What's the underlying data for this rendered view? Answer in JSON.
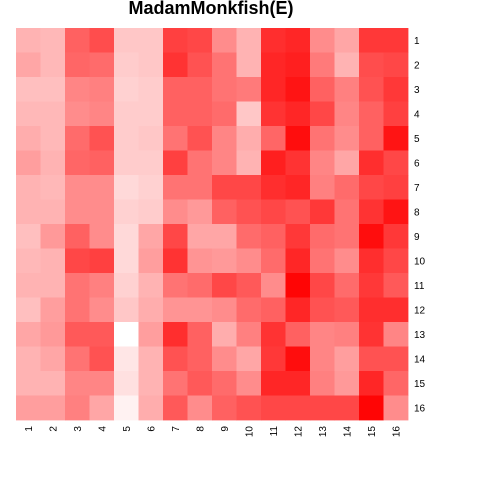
{
  "chart_data": {
    "type": "heatmap",
    "title": "MadamMonkfish(E)",
    "x_labels": [
      "1",
      "2",
      "3",
      "4",
      "5",
      "6",
      "7",
      "8",
      "9",
      "10",
      "11",
      "12",
      "13",
      "14",
      "15",
      "16"
    ],
    "y_labels": [
      "1",
      "2",
      "3",
      "4",
      "5",
      "6",
      "7",
      "8",
      "9",
      "10",
      "11",
      "12",
      "13",
      "14",
      "15",
      "16"
    ],
    "color_scale": {
      "low": "#ffffff",
      "high": "#ff0000"
    },
    "value_range": [
      0,
      1
    ],
    "values": [
      [
        0.3,
        0.28,
        0.62,
        0.7,
        0.22,
        0.22,
        0.75,
        0.72,
        0.45,
        0.3,
        0.82,
        0.85,
        0.45,
        0.35,
        0.78,
        0.78
      ],
      [
        0.35,
        0.28,
        0.6,
        0.58,
        0.2,
        0.22,
        0.8,
        0.68,
        0.55,
        0.3,
        0.85,
        0.88,
        0.52,
        0.3,
        0.7,
        0.72
      ],
      [
        0.25,
        0.25,
        0.48,
        0.5,
        0.18,
        0.2,
        0.62,
        0.62,
        0.55,
        0.52,
        0.85,
        0.92,
        0.62,
        0.5,
        0.68,
        0.78
      ],
      [
        0.28,
        0.28,
        0.45,
        0.48,
        0.2,
        0.2,
        0.62,
        0.62,
        0.58,
        0.22,
        0.8,
        0.85,
        0.72,
        0.48,
        0.62,
        0.75
      ],
      [
        0.32,
        0.28,
        0.58,
        0.68,
        0.2,
        0.22,
        0.55,
        0.68,
        0.48,
        0.32,
        0.6,
        0.95,
        0.55,
        0.45,
        0.62,
        0.92
      ],
      [
        0.38,
        0.3,
        0.6,
        0.62,
        0.2,
        0.2,
        0.75,
        0.55,
        0.48,
        0.3,
        0.88,
        0.8,
        0.48,
        0.35,
        0.82,
        0.72
      ],
      [
        0.3,
        0.28,
        0.45,
        0.45,
        0.15,
        0.18,
        0.55,
        0.55,
        0.72,
        0.72,
        0.82,
        0.85,
        0.5,
        0.58,
        0.72,
        0.75
      ],
      [
        0.3,
        0.3,
        0.45,
        0.45,
        0.18,
        0.2,
        0.45,
        0.4,
        0.62,
        0.68,
        0.72,
        0.68,
        0.78,
        0.55,
        0.8,
        0.92
      ],
      [
        0.25,
        0.4,
        0.62,
        0.45,
        0.15,
        0.35,
        0.72,
        0.35,
        0.35,
        0.58,
        0.62,
        0.78,
        0.58,
        0.55,
        0.95,
        0.78
      ],
      [
        0.28,
        0.3,
        0.72,
        0.75,
        0.15,
        0.38,
        0.8,
        0.42,
        0.4,
        0.45,
        0.58,
        0.85,
        0.55,
        0.45,
        0.82,
        0.72
      ],
      [
        0.3,
        0.3,
        0.55,
        0.5,
        0.18,
        0.3,
        0.55,
        0.58,
        0.72,
        0.65,
        0.45,
        0.98,
        0.72,
        0.58,
        0.78,
        0.65
      ],
      [
        0.25,
        0.38,
        0.55,
        0.45,
        0.22,
        0.32,
        0.42,
        0.42,
        0.45,
        0.58,
        0.62,
        0.85,
        0.68,
        0.65,
        0.82,
        0.82
      ],
      [
        0.35,
        0.4,
        0.65,
        0.65,
        0.0,
        0.38,
        0.82,
        0.62,
        0.32,
        0.5,
        0.8,
        0.62,
        0.48,
        0.5,
        0.8,
        0.48
      ],
      [
        0.3,
        0.35,
        0.55,
        0.68,
        0.1,
        0.3,
        0.68,
        0.62,
        0.45,
        0.35,
        0.78,
        0.95,
        0.48,
        0.38,
        0.68,
        0.68
      ],
      [
        0.3,
        0.3,
        0.48,
        0.48,
        0.12,
        0.3,
        0.55,
        0.65,
        0.58,
        0.45,
        0.85,
        0.85,
        0.5,
        0.4,
        0.85,
        0.6
      ],
      [
        0.38,
        0.38,
        0.5,
        0.35,
        0.05,
        0.32,
        0.65,
        0.45,
        0.62,
        0.68,
        0.72,
        0.72,
        0.72,
        0.72,
        0.98,
        0.45
      ]
    ]
  }
}
